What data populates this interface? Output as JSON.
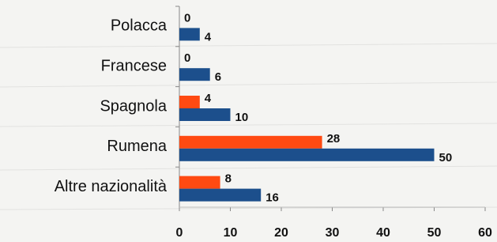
{
  "chart_data": {
    "type": "hbar",
    "categories": [
      "Polacca",
      "Francese",
      "Spagnola",
      "Rumena",
      "Altre nazionalità"
    ],
    "series": [
      {
        "color": "#ff4a12",
        "values": [
          0,
          0,
          4,
          28,
          8
        ]
      },
      {
        "color": "#1c4f8c",
        "values": [
          4,
          6,
          10,
          50,
          16
        ]
      }
    ],
    "xlim": [
      0,
      60
    ],
    "xticks": [
      0,
      10,
      20,
      30,
      40,
      50,
      60
    ]
  }
}
